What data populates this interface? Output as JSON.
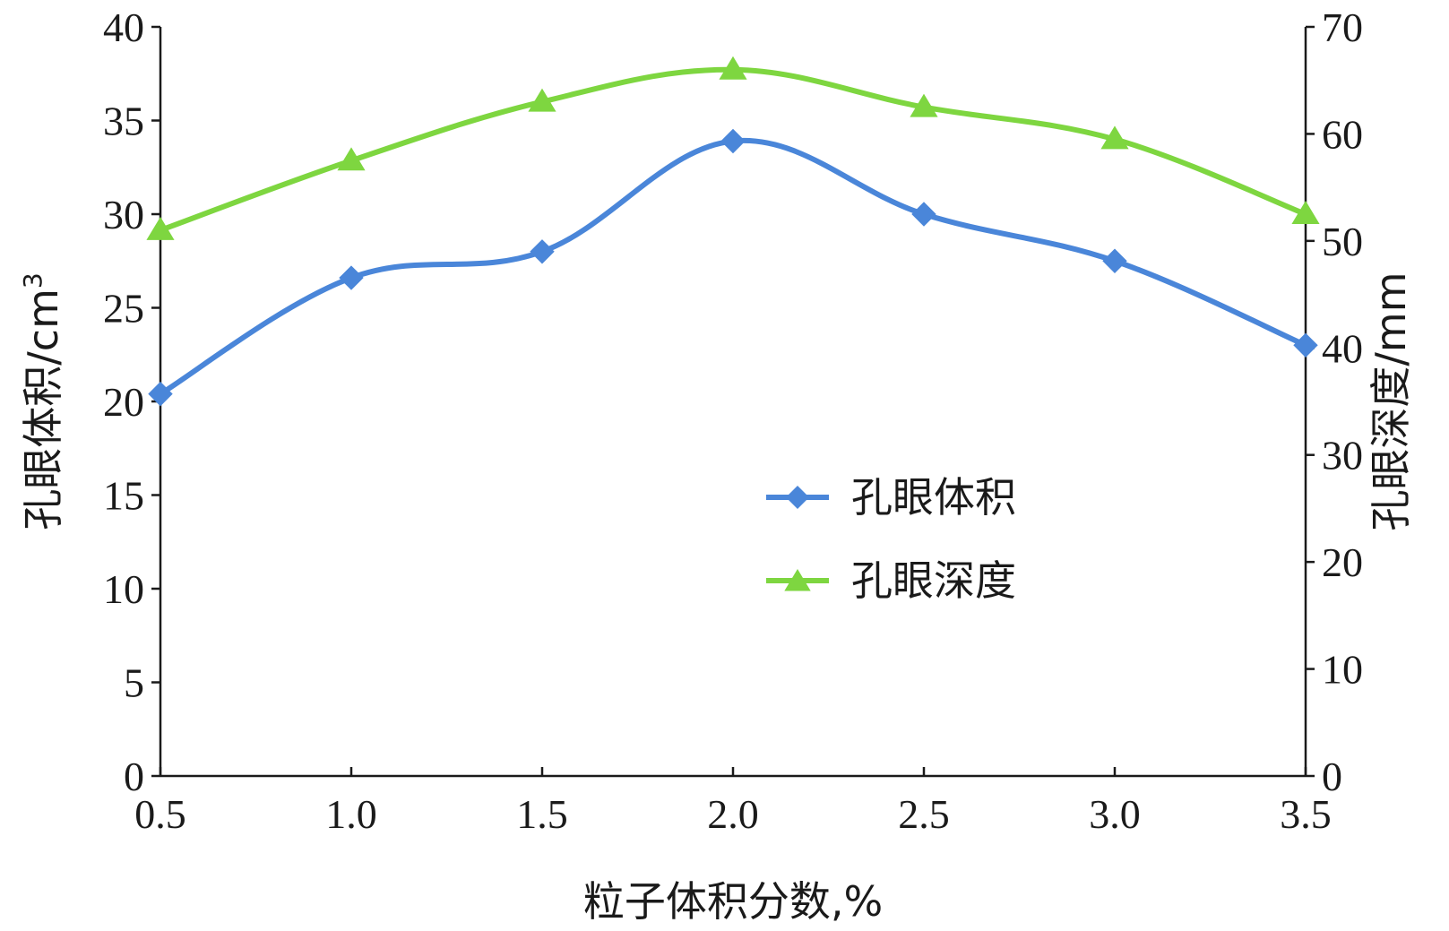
{
  "chart_data": {
    "type": "line",
    "x": [
      0.5,
      1.0,
      1.5,
      2.0,
      2.5,
      3.0,
      3.5
    ],
    "x_tick_labels": [
      "0.5",
      "1.0",
      "1.5",
      "2.0",
      "2.5",
      "3.0",
      "3.5"
    ],
    "xlabel": "粒子体积分数,%",
    "ylabel_left": "孔眼体积/cm",
    "ylabel_left_superscript": "3",
    "ylabel_right": "孔眼深度/mm",
    "ylim_left": [
      0,
      40
    ],
    "ylim_right": [
      0,
      70
    ],
    "yticks_left": [
      "0",
      "5",
      "10",
      "15",
      "20",
      "25",
      "30",
      "35",
      "40"
    ],
    "yticks_right": [
      "0",
      "10",
      "20",
      "30",
      "40",
      "50",
      "60",
      "70"
    ],
    "grid": false,
    "legend_position": "center-right",
    "series": [
      {
        "name": "孔眼体积",
        "axis": "left",
        "marker": "diamond",
        "color": "#4a86d9",
        "values": [
          20.4,
          26.6,
          28.0,
          33.9,
          30.0,
          27.5,
          23.0
        ]
      },
      {
        "name": "孔眼深度",
        "axis": "right",
        "marker": "triangle",
        "color": "#7ed640",
        "values": [
          51.0,
          57.5,
          63.0,
          66.0,
          62.5,
          59.5,
          52.5
        ]
      }
    ]
  }
}
